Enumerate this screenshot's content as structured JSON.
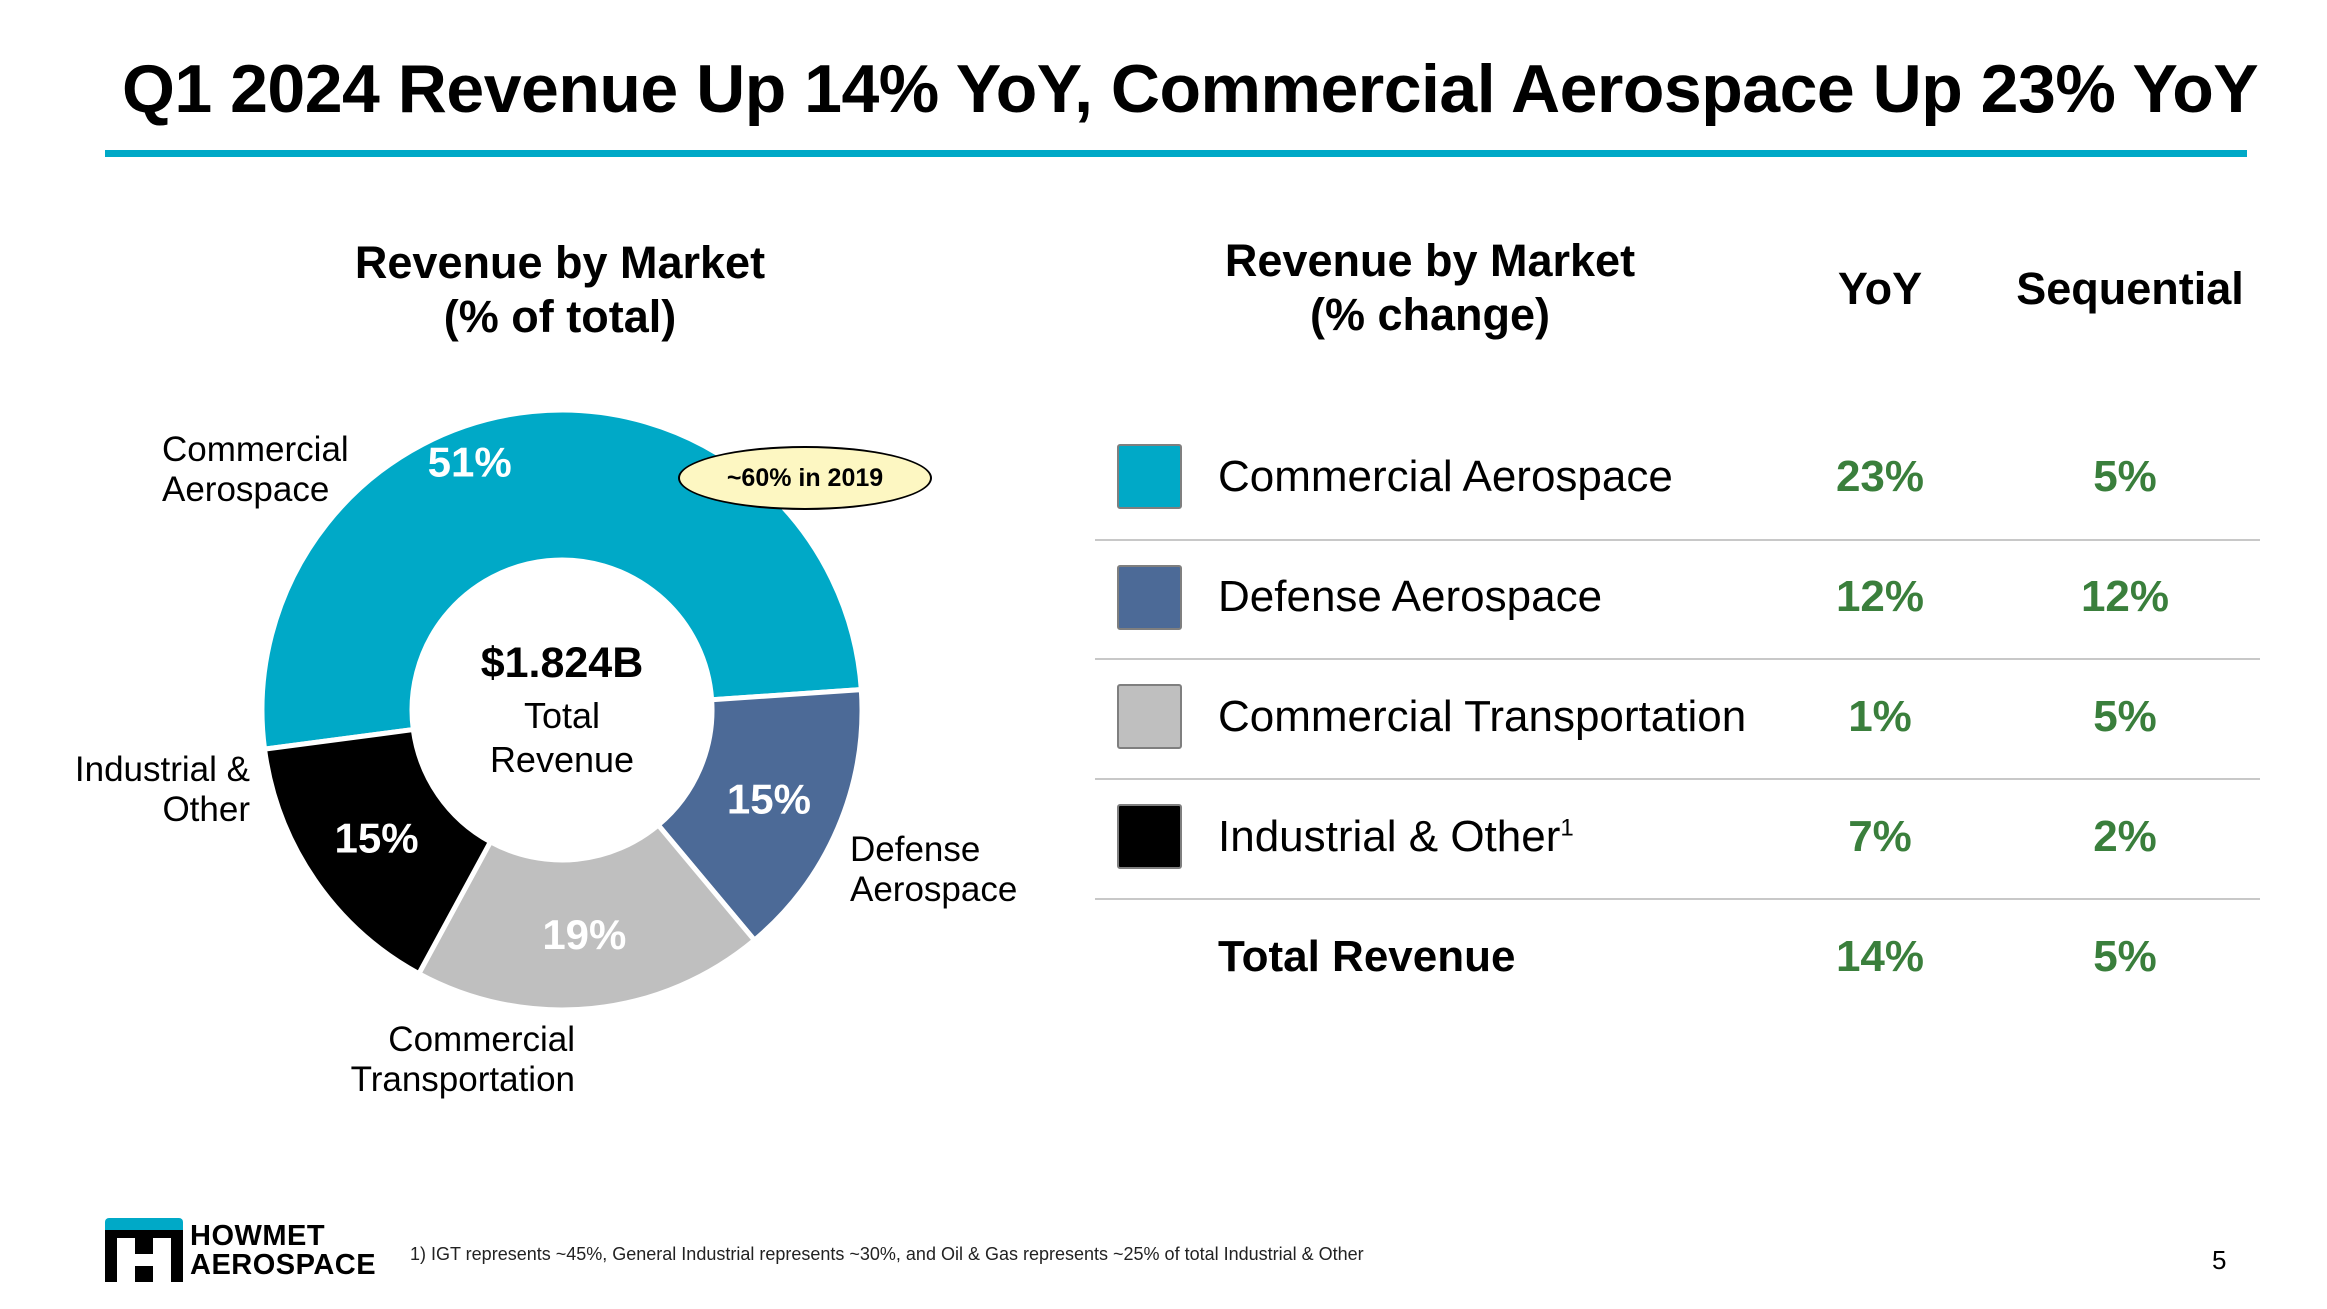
{
  "title": "Q1 2024 Revenue Up 14% YoY, Commercial Aerospace Up 23% YoY",
  "donut": {
    "heading_line1": "Revenue by Market",
    "heading_line2": "(% of total)",
    "center_value": "$1.824B",
    "center_label_line1": "Total",
    "center_label_line2": "Revenue",
    "callout": "~60% in 2019"
  },
  "segment_labels": {
    "commercial_aerospace": [
      "Commercial",
      "Aerospace"
    ],
    "industrial_other": [
      "Industrial &",
      "Other"
    ],
    "defense_aerospace": [
      "Defense",
      "Aerospace"
    ],
    "commercial_transportation": [
      "Commercial",
      "Transportation"
    ]
  },
  "chart_data": {
    "type": "pie",
    "title": "Revenue by Market (% of total)",
    "categories": [
      "Commercial Aerospace",
      "Defense Aerospace",
      "Commercial Transportation",
      "Industrial & Other"
    ],
    "values": [
      51,
      15,
      19,
      15
    ],
    "value_labels": [
      "51%",
      "15%",
      "19%",
      "15%"
    ],
    "colors": [
      "#00a9c7",
      "#4c6a97",
      "#bfbfbf",
      "#000000"
    ],
    "label_colors": [
      "#ffffff",
      "#ffffff",
      "#ffffff",
      "#ffffff"
    ],
    "center_text": "$1.824B Total Revenue"
  },
  "table": {
    "heading_line1": "Revenue by Market",
    "heading_line2": "(% change)",
    "col_yoy": "YoY",
    "col_seq": "Sequential",
    "rows": [
      {
        "market": "Commercial Aerospace",
        "yoy": "23%",
        "seq": "5%",
        "color": "#00a9c7"
      },
      {
        "market": "Defense Aerospace",
        "yoy": "12%",
        "seq": "12%",
        "color": "#4c6a97"
      },
      {
        "market": "Commercial Transportation",
        "yoy": "1%",
        "seq": "5%",
        "color": "#bfbfbf"
      },
      {
        "market": "Industrial & Other",
        "sup": "1",
        "yoy": "7%",
        "seq": "2%",
        "color": "#000000"
      },
      {
        "market": "Total Revenue",
        "yoy": "14%",
        "seq": "5%"
      }
    ]
  },
  "logo": {
    "line1": "HOWMET",
    "line2": "AEROSPACE",
    "icon": "howmet-h-logo"
  },
  "footnote": "1)  IGT represents ~45%, General Industrial represents ~30%, and Oil & Gas represents ~25% of total Industrial & Other",
  "page_number": "5",
  "colors": {
    "accent": "#00a9c7",
    "positive": "#3a7f3c"
  }
}
